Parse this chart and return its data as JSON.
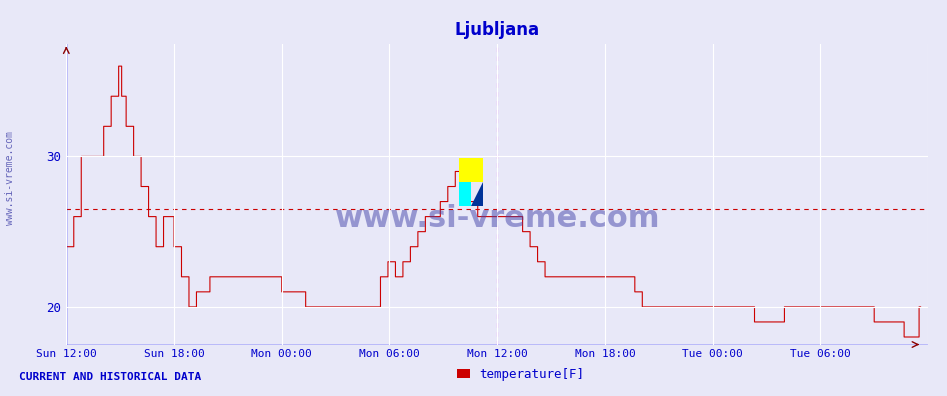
{
  "title": "Ljubljana",
  "title_color": "#0000cc",
  "xlabel": "",
  "ylabel": "",
  "y_label_text": "temperature[F]",
  "yticks": [
    20,
    30
  ],
  "ymin": 17.5,
  "ymax": 37.5,
  "background_color": "#e8e8f8",
  "plot_bg_color": "#e8e8f8",
  "grid_color": "#ffffff",
  "line_color": "#cc0000",
  "avg_line_color": "#cc0000",
  "avg_value": 26.5,
  "watermark": "www.si-vreme.com",
  "watermark_color": "#4444aa",
  "axis_color": "#0000cc",
  "tick_color": "#0000cc",
  "tick_label_color": "#0000cc",
  "current_and_historical": "CURRENT AND HISTORICAL DATA",
  "xtick_labels": [
    "Sun 12:00",
    "Sun 18:00",
    "Mon 00:00",
    "Mon 06:00",
    "Mon 12:00",
    "Mon 18:00",
    "Tue 00:00",
    "Tue 06:00",
    ""
  ],
  "xtick_positions": [
    0,
    72,
    144,
    216,
    288,
    360,
    432,
    504,
    576
  ],
  "total_points": 576,
  "vline_positions": [
    288,
    576
  ],
  "vline_color": "#ff00ff",
  "left_vline_color": "#0000ff",
  "temp_data": [
    24,
    24,
    24,
    24,
    24,
    26,
    26,
    26,
    26,
    26,
    30,
    30,
    30,
    30,
    30,
    30,
    30,
    30,
    30,
    30,
    30,
    30,
    30,
    30,
    30,
    32,
    32,
    32,
    32,
    32,
    34,
    34,
    34,
    34,
    34,
    36,
    36,
    34,
    34,
    34,
    32,
    32,
    32,
    32,
    32,
    30,
    30,
    30,
    30,
    30,
    28,
    28,
    28,
    28,
    28,
    26,
    26,
    26,
    26,
    26,
    24,
    24,
    24,
    24,
    24,
    26,
    26,
    26,
    26,
    26,
    26,
    26,
    24,
    24,
    24,
    24,
    24,
    22,
    22,
    22,
    22,
    22,
    20,
    20,
    20,
    20,
    20,
    21,
    21,
    21,
    21,
    21,
    21,
    21,
    21,
    21,
    22,
    22,
    22,
    22,
    22,
    22,
    22,
    22,
    22,
    22,
    22,
    22,
    22,
    22,
    22,
    22,
    22,
    22,
    22,
    22,
    22,
    22,
    22,
    22,
    22,
    22,
    22,
    22,
    22,
    22,
    22,
    22,
    22,
    22,
    22,
    22,
    22,
    22,
    22,
    22,
    22,
    22,
    22,
    22,
    22,
    22,
    22,
    22,
    21,
    21,
    21,
    21,
    21,
    21,
    21,
    21,
    21,
    21,
    21,
    21,
    21,
    21,
    21,
    21,
    20,
    20,
    20,
    20,
    20,
    20,
    20,
    20,
    20,
    20,
    20,
    20,
    20,
    20,
    20,
    20,
    20,
    20,
    20,
    20,
    20,
    20,
    20,
    20,
    20,
    20,
    20,
    20,
    20,
    20,
    20,
    20,
    20,
    20,
    20,
    20,
    20,
    20,
    20,
    20,
    20,
    20,
    20,
    20,
    20,
    20,
    20,
    20,
    20,
    20,
    22,
    22,
    22,
    22,
    22,
    23,
    23,
    23,
    23,
    23,
    22,
    22,
    22,
    22,
    22,
    23,
    23,
    23,
    23,
    23,
    24,
    24,
    24,
    24,
    24,
    25,
    25,
    25,
    25,
    25,
    26,
    26,
    26,
    26,
    26,
    26,
    26,
    26,
    26,
    26,
    27,
    27,
    27,
    27,
    27,
    28,
    28,
    28,
    28,
    28,
    29,
    29,
    29,
    29,
    29,
    28,
    28,
    28,
    28,
    28,
    27,
    27,
    27,
    27,
    27,
    26,
    26,
    26,
    26,
    26,
    26,
    26,
    26,
    26,
    26,
    26,
    26,
    26,
    26,
    26,
    26,
    26,
    26,
    26,
    26,
    26,
    26,
    26,
    26,
    26,
    26,
    26,
    26,
    26,
    26,
    25,
    25,
    25,
    25,
    25,
    24,
    24,
    24,
    24,
    24,
    23,
    23,
    23,
    23,
    23,
    22,
    22,
    22,
    22,
    22,
    22,
    22,
    22,
    22,
    22,
    22,
    22,
    22,
    22,
    22,
    22,
    22,
    22,
    22,
    22,
    22,
    22,
    22,
    22,
    22,
    22,
    22,
    22,
    22,
    22,
    22,
    22,
    22,
    22,
    22,
    22,
    22,
    22,
    22,
    22,
    22,
    22,
    22,
    22,
    22,
    22,
    22,
    22,
    22,
    22,
    22,
    22,
    22,
    22,
    22,
    22,
    22,
    22,
    22,
    22,
    21,
    21,
    21,
    21,
    21,
    20,
    20,
    20,
    20,
    20,
    20,
    20,
    20,
    20,
    20,
    20,
    20,
    20,
    20,
    20,
    20,
    20,
    20,
    20,
    20,
    20,
    20,
    20,
    20,
    20,
    20,
    20,
    20,
    20,
    20,
    20,
    20,
    20,
    20,
    20,
    20,
    20,
    20,
    20,
    20,
    20,
    20,
    20,
    20,
    20,
    20,
    20,
    20,
    20,
    20,
    20,
    20,
    20,
    20,
    20,
    20,
    20,
    20,
    20,
    20,
    20,
    20,
    20,
    20,
    20,
    20,
    20,
    20,
    20,
    20,
    20,
    20,
    20,
    20,
    20,
    19,
    19,
    19,
    19,
    19,
    19,
    19,
    19,
    19,
    19,
    19,
    19,
    19,
    19,
    19,
    19,
    19,
    19,
    19,
    19,
    20,
    20,
    20,
    20,
    20,
    20,
    20,
    20,
    20,
    20,
    20,
    20,
    20,
    20,
    20,
    20,
    20,
    20,
    20,
    20,
    20,
    20,
    20,
    20,
    20,
    20,
    20,
    20,
    20,
    20,
    20,
    20,
    20,
    20,
    20,
    20,
    20,
    20,
    20,
    20,
    20,
    20,
    20,
    20,
    20,
    20,
    20,
    20,
    20,
    20,
    20,
    20,
    20,
    20,
    20,
    20,
    20,
    20,
    20,
    20,
    19,
    19,
    19,
    19,
    19,
    19,
    19,
    19,
    19,
    19,
    19,
    19,
    19,
    19,
    19,
    19,
    19,
    19,
    19,
    19,
    18,
    18,
    18,
    18,
    18,
    18,
    18,
    18,
    18,
    18,
    20,
    20
  ]
}
